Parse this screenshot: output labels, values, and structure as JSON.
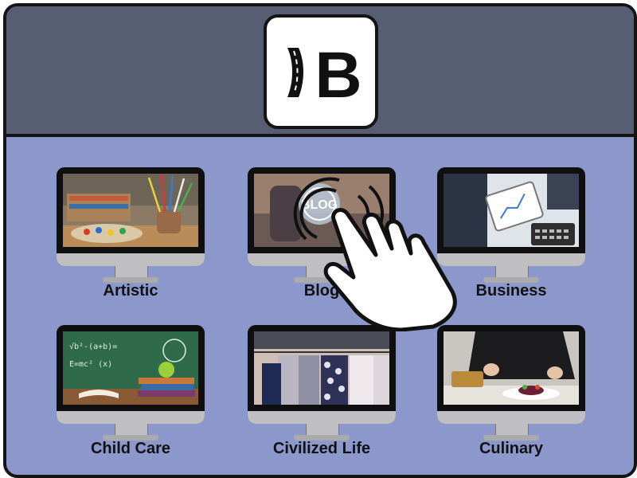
{
  "app": {
    "logo": {
      "name": "B-logo-icon",
      "letter": "B"
    }
  },
  "categories": [
    {
      "label": "Artistic",
      "icon": "paint-brushes-image"
    },
    {
      "label": "Blog",
      "icon": "blog-button-image"
    },
    {
      "label": "Business",
      "icon": "tablet-chart-image"
    },
    {
      "label": "Child Care",
      "icon": "chalkboard-apple-image"
    },
    {
      "label": "Civilized Life",
      "icon": "clothing-rack-image"
    },
    {
      "label": "Culinary",
      "icon": "chef-plating-image"
    }
  ],
  "colors": {
    "header_bg": "#575d73",
    "body_bg": "#8c98cb",
    "border": "#141414",
    "label_text": "#111111"
  },
  "cursor": {
    "icon": "pointer-hand-click-icon"
  }
}
